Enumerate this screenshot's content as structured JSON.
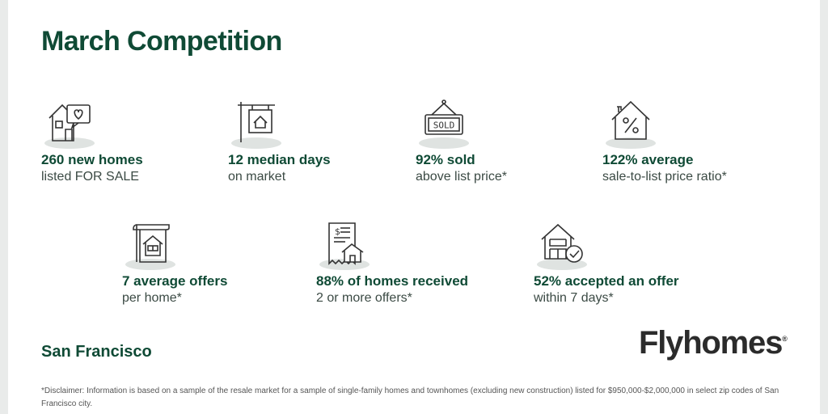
{
  "title": "March Competition",
  "stats_row1": [
    {
      "icon": "house-heart-icon",
      "line1": "260 new homes",
      "line2": "listed FOR SALE"
    },
    {
      "icon": "house-sign-icon",
      "line1": "12 median days",
      "line2": "on market"
    },
    {
      "icon": "sold-sign-icon",
      "line1": "92% sold",
      "line2": "above list price*"
    },
    {
      "icon": "house-percent-icon",
      "line1": "122% average",
      "line2": "sale-to-list price ratio*"
    }
  ],
  "stats_row2": [
    {
      "icon": "house-document-icon",
      "line1": "7 average offers",
      "line2": "per home*"
    },
    {
      "icon": "receipt-house-icon",
      "line1": "88% of homes received",
      "line2": "2 or more offers*"
    },
    {
      "icon": "house-check-icon",
      "line1": "52% accepted an offer",
      "line2": "within 7 days*"
    }
  ],
  "sold_sign_text": "SOLD",
  "city": "San Francisco",
  "brand": {
    "name": "Flyhomes",
    "mark": "®"
  },
  "disclaimer": "*Disclaimer: Information is based on a sample of the resale market for a sample of single-family homes and townhomes (excluding new construction) listed for $950,000-$2,000,000 in select zip codes of San Francisco city.",
  "colors": {
    "brand_green": "#0f4a35",
    "body_text": "#3b4a44",
    "icon_shadow": "#dfe3e1"
  }
}
